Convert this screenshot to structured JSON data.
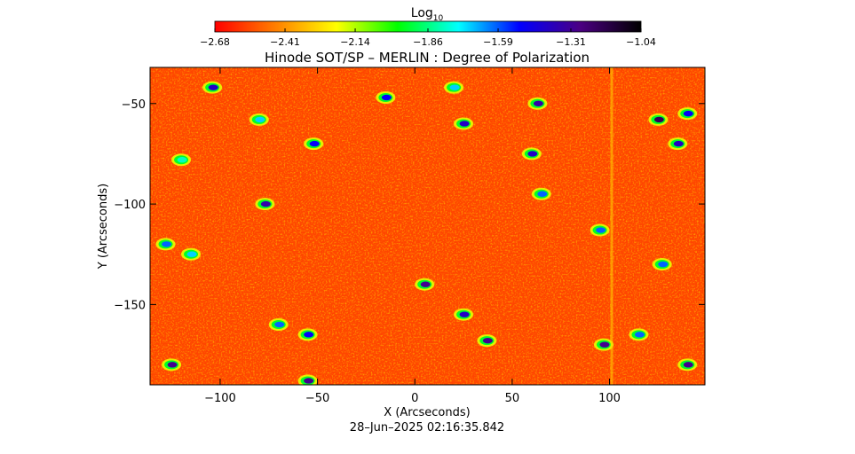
{
  "chart_data": {
    "type": "heatmap",
    "title": "Hinode SOT/SP – MERLIN : Degree of Polarization",
    "xlabel": "X (Arcseconds)",
    "ylabel": "Y (Arcseconds)",
    "xlim": [
      -136,
      149
    ],
    "ylim": [
      -190,
      -32
    ],
    "x_ticks": [
      -100,
      -50,
      0,
      50,
      100
    ],
    "x_tick_labels": [
      "−100",
      "−50",
      "0",
      "50",
      "100"
    ],
    "y_ticks": [
      -50,
      -100,
      -150
    ],
    "y_tick_labels": [
      "−50",
      "−100",
      "−150"
    ],
    "colorbar": {
      "label_base": "Log",
      "label_sub": "10",
      "ticks": [
        -2.68,
        -2.41,
        -2.14,
        -1.86,
        -1.59,
        -1.31,
        -1.04
      ],
      "tick_labels": [
        "−2.68",
        "−2.41",
        "−2.14",
        "−1.86",
        "−1.59",
        "−1.31",
        "−1.04"
      ],
      "colormap": [
        "#ff0000",
        "#ff7f00",
        "#ffff00",
        "#00ff00",
        "#00ffff",
        "#0000ff",
        "#4b0082",
        "#000000"
      ]
    },
    "background_level": -2.55,
    "features": [
      {
        "x": -104,
        "y": -42,
        "level": -1.4
      },
      {
        "x": -80,
        "y": -58,
        "level": -1.7
      },
      {
        "x": -52,
        "y": -70,
        "level": -1.5
      },
      {
        "x": -77,
        "y": -100,
        "level": -1.35
      },
      {
        "x": -120,
        "y": -78,
        "level": -1.8
      },
      {
        "x": -128,
        "y": -120,
        "level": -1.6
      },
      {
        "x": -115,
        "y": -125,
        "level": -1.7
      },
      {
        "x": -70,
        "y": -160,
        "level": -1.6
      },
      {
        "x": -55,
        "y": -165,
        "level": -1.5
      },
      {
        "x": -125,
        "y": -180,
        "level": -1.3
      },
      {
        "x": -55,
        "y": -188,
        "level": -1.3
      },
      {
        "x": -15,
        "y": -47,
        "level": -1.5
      },
      {
        "x": 20,
        "y": -42,
        "level": -1.7
      },
      {
        "x": 25,
        "y": -60,
        "level": -1.4
      },
      {
        "x": 5,
        "y": -140,
        "level": -1.3
      },
      {
        "x": 25,
        "y": -155,
        "level": -1.4
      },
      {
        "x": 37,
        "y": -168,
        "level": -1.3
      },
      {
        "x": 63,
        "y": -50,
        "level": -1.35
      },
      {
        "x": 60,
        "y": -75,
        "level": -1.4
      },
      {
        "x": 65,
        "y": -95,
        "level": -1.6
      },
      {
        "x": 95,
        "y": -113,
        "level": -1.6
      },
      {
        "x": 97,
        "y": -170,
        "level": -1.3
      },
      {
        "x": 115,
        "y": -165,
        "level": -1.6
      },
      {
        "x": 125,
        "y": -58,
        "level": -1.2
      },
      {
        "x": 135,
        "y": -70,
        "level": -1.4
      },
      {
        "x": 140,
        "y": -55,
        "level": -1.5
      },
      {
        "x": 127,
        "y": -130,
        "level": -1.6
      },
      {
        "x": 140,
        "y": -180,
        "level": -1.3
      }
    ]
  },
  "footer": {
    "timestamp": "28–Jun–2025 02:16:35.842"
  }
}
